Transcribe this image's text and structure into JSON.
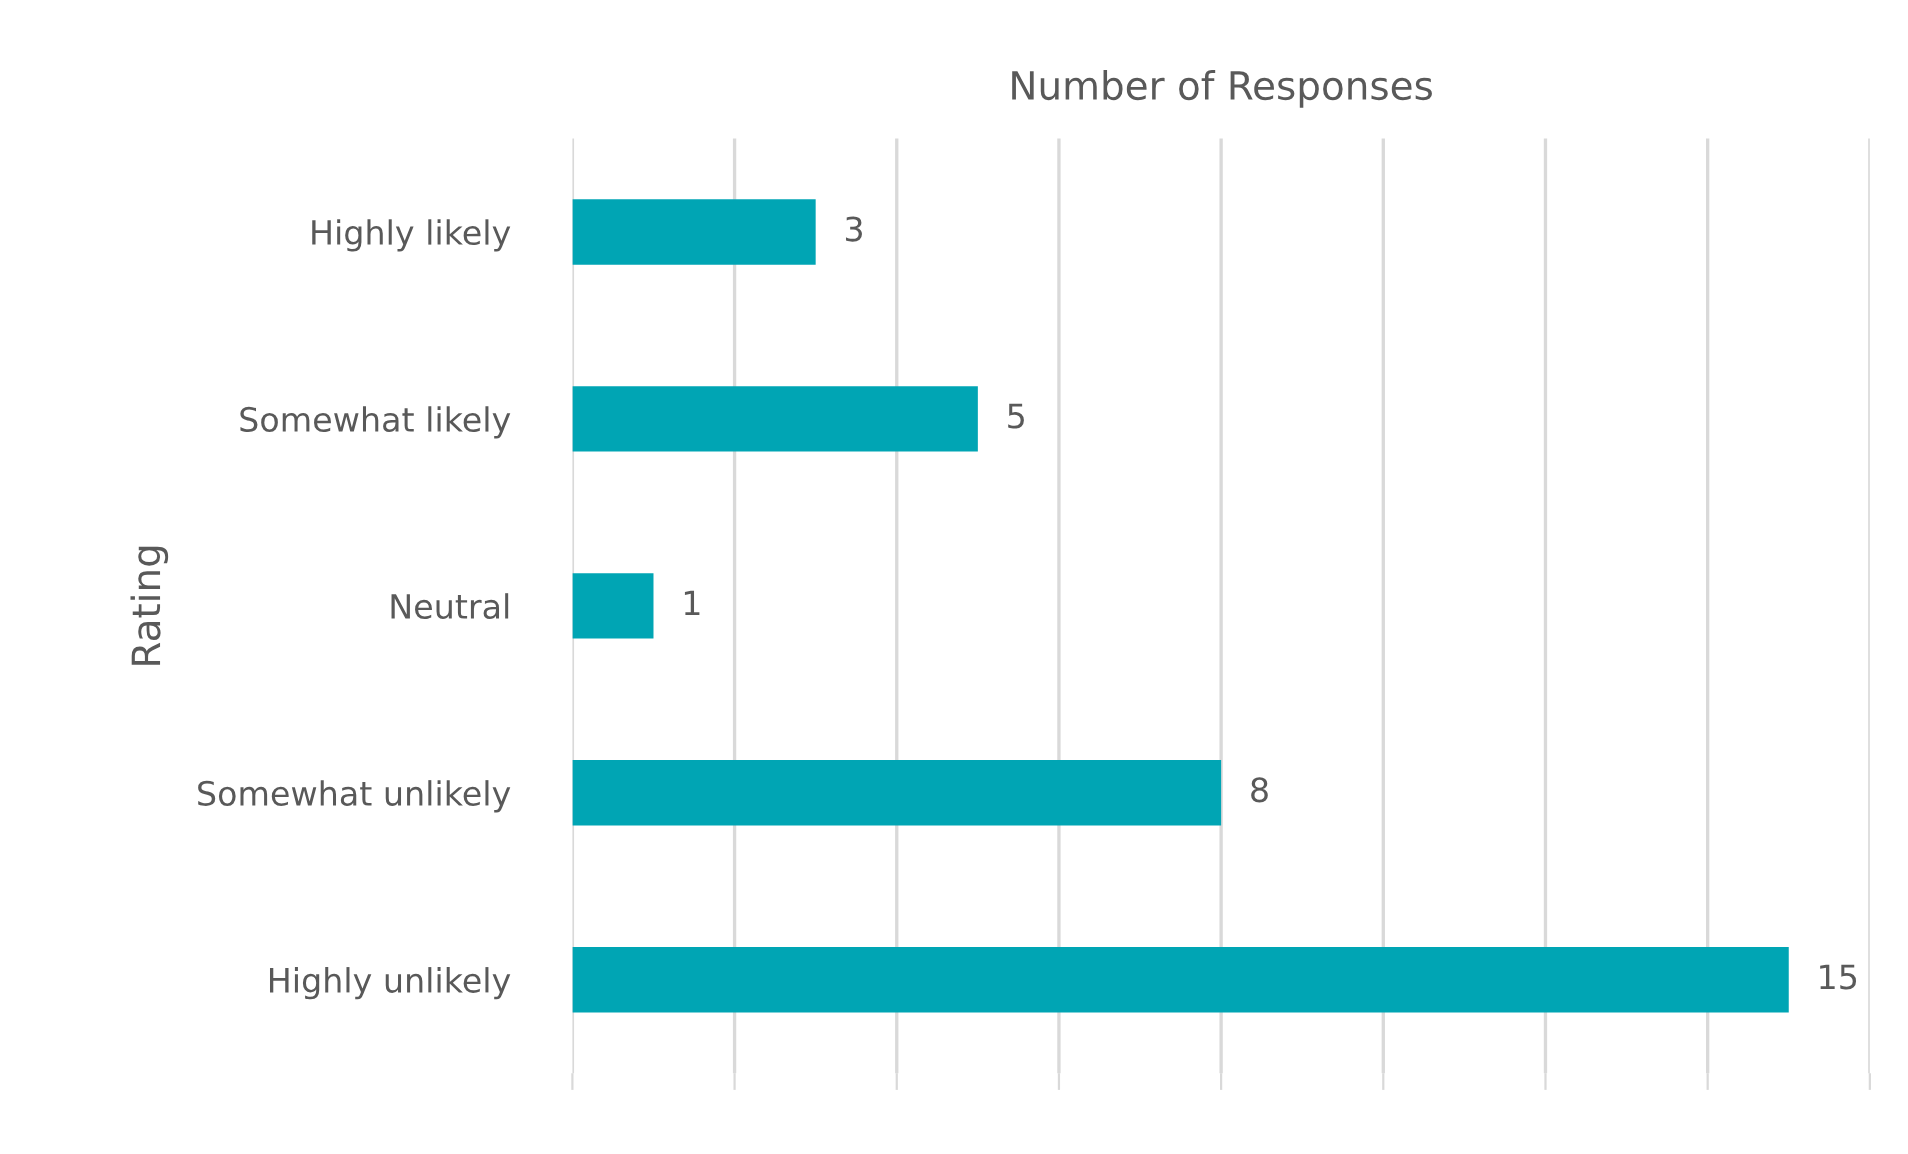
{
  "chart_data": {
    "type": "bar",
    "orientation": "horizontal",
    "title": "Number of Responses",
    "ylabel": "Rating",
    "categories": [
      "Highly likely",
      "Somewhat likely",
      "Neutral",
      "Somewhat unlikely",
      "Highly unlikely"
    ],
    "values": [
      3,
      5,
      1,
      8,
      15
    ],
    "color": "#00a5b4",
    "xlim": [
      0,
      16
    ],
    "xticks": [
      {
        "value": 0,
        "label": null
      },
      {
        "value": 2,
        "label": null
      },
      {
        "value": 4,
        "label": null
      },
      {
        "value": 6,
        "label": null
      },
      {
        "value": 8,
        "label": null
      },
      {
        "value": 10,
        "label": null
      },
      {
        "value": 12,
        "label": null
      },
      {
        "value": 14,
        "label": null
      },
      {
        "value": 16,
        "label": null
      }
    ],
    "grid": "x",
    "data_labels": true,
    "tick_labels": "y"
  }
}
